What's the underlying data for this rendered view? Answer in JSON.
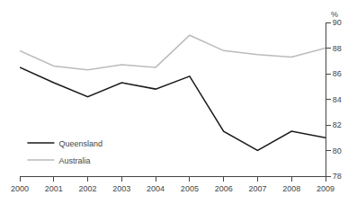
{
  "chart_data": {
    "type": "line",
    "x": [
      2000,
      2001,
      2002,
      2003,
      2004,
      2005,
      2006,
      2007,
      2008,
      2009
    ],
    "series": [
      {
        "name": "Queensland",
        "color": "#1a1a1a",
        "values": [
          86.5,
          85.3,
          84.2,
          85.3,
          84.8,
          85.8,
          81.5,
          80.0,
          81.5,
          81.0
        ]
      },
      {
        "name": "Australia",
        "color": "#bbbbbb",
        "values": [
          87.8,
          86.6,
          86.3,
          86.7,
          86.5,
          89.0,
          87.8,
          87.5,
          87.3,
          88.0
        ]
      }
    ],
    "xlim": [
      2000,
      2009
    ],
    "xticks": [
      2000,
      2001,
      2002,
      2003,
      2004,
      2005,
      2006,
      2007,
      2008,
      2009
    ],
    "ylim": [
      78,
      90
    ],
    "yticks": [
      78,
      80,
      82,
      84,
      86,
      88,
      90
    ],
    "ylabel": "%",
    "grid": false,
    "legend": "lower left"
  }
}
